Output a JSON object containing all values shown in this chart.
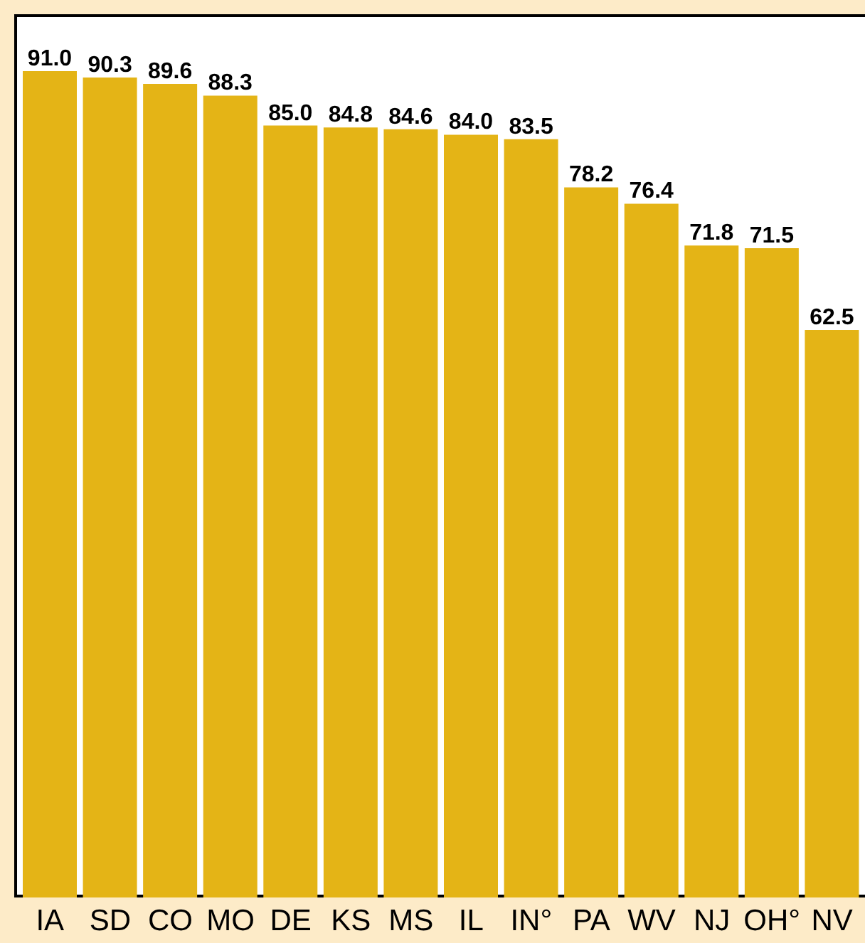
{
  "chart_data": {
    "type": "bar",
    "categories": [
      "IA",
      "SD",
      "CO",
      "MO",
      "DE",
      "KS",
      "MS",
      "IL",
      "IN°",
      "PA",
      "WV",
      "NJ",
      "OH°",
      "NV"
    ],
    "values": [
      91.0,
      90.3,
      89.6,
      88.3,
      85.0,
      84.8,
      84.6,
      84.0,
      83.5,
      78.2,
      76.4,
      71.8,
      71.5,
      62.5
    ],
    "color": "#e4b416",
    "value_labels": [
      "91.0",
      "90.3",
      "89.6",
      "88.3",
      "85.0",
      "84.8",
      "84.6",
      "84.0",
      "83.5",
      "78.2",
      "76.4",
      "71.8",
      "71.5",
      "62.5"
    ],
    "grid": false,
    "legend": false
  }
}
